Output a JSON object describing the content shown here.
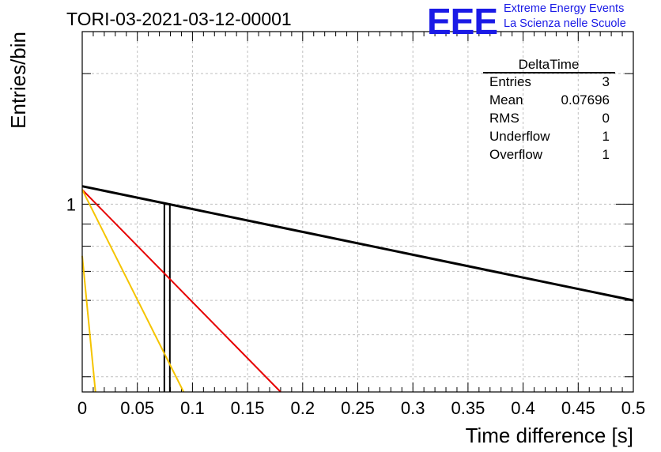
{
  "colors": {
    "logo": "#1a1ae6",
    "red_line": "#e60000",
    "yellow_line": "#f5c400",
    "black_line": "#000000",
    "grid": "#bfbfbf"
  },
  "logo": {
    "mark": "EEE",
    "line1": "Extreme Energy Events",
    "line2": "La Scienza nelle Scuole"
  },
  "chart_data": {
    "type": "bar",
    "title": "TORI-03-2021-03-12-00001",
    "xlabel": "Time difference [s]",
    "ylabel": "Entries/bin",
    "xlim": [
      0,
      0.5
    ],
    "ylim_log": [
      0.369,
      2.5
    ],
    "y_scale": "log",
    "grid": true,
    "x_ticks": [
      "0",
      "0.05",
      "0.1",
      "0.15",
      "0.2",
      "0.25",
      "0.3",
      "0.35",
      "0.4",
      "0.45",
      "0.5"
    ],
    "y_ticks": [
      "1"
    ],
    "bins": [
      {
        "x_low": 0.0745,
        "x_high": 0.0795,
        "count": 1
      }
    ],
    "series": [
      {
        "color": "black",
        "x": [
          0,
          0.5
        ],
        "y": [
          1.1,
          0.6
        ]
      },
      {
        "color": "red",
        "x": [
          0,
          0.18
        ],
        "y": [
          1.08,
          0.369
        ]
      },
      {
        "color": "yellow",
        "x": [
          0,
          0.092
        ],
        "y": [
          1.08,
          0.369
        ]
      },
      {
        "color": "yellow",
        "x": [
          0,
          0.012
        ],
        "y": [
          0.76,
          0.369
        ]
      }
    ],
    "stats_box": {
      "title": "DeltaTime",
      "legend_position": "top-right",
      "rows": [
        {
          "label": "Entries",
          "value": "3"
        },
        {
          "label": "Mean",
          "value": "0.07696"
        },
        {
          "label": "RMS",
          "value": "0"
        },
        {
          "label": "Underflow",
          "value": "1"
        },
        {
          "label": "Overflow",
          "value": "1"
        }
      ]
    }
  }
}
